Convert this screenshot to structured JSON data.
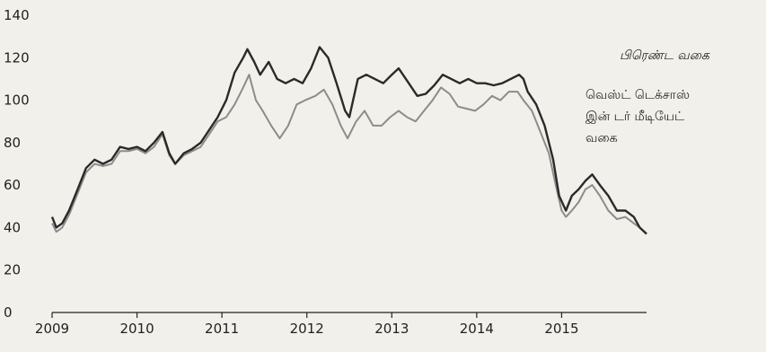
{
  "chart_data": {
    "type": "line",
    "title": "",
    "xlabel": "",
    "ylabel": "",
    "xlim": [
      2009,
      2016
    ],
    "ylim": [
      0,
      140
    ],
    "y_ticks": [
      0,
      20,
      40,
      60,
      80,
      100,
      120,
      140
    ],
    "x_ticks": [
      2009,
      2010,
      2011,
      2012,
      2013,
      2014,
      2015
    ],
    "x_tick_labels": [
      "2009",
      "2010",
      "2011",
      "2012",
      "2013",
      "2014",
      "2015"
    ],
    "grid": false,
    "legend": {
      "placement": "right",
      "entries": [
        {
          "text": "பிரெண்ட வகை",
          "series": 0
        },
        {
          "lines": [
            "வெஸ்ட் டெக்சாஸ்",
            "இன் டர் மீடியேட்",
            "வகை"
          ],
          "series": 1
        }
      ]
    },
    "series": [
      {
        "name": "பிரெண்ட வகை",
        "color": "#2a2a2a",
        "points": [
          [
            2009.0,
            45
          ],
          [
            2009.05,
            40
          ],
          [
            2009.12,
            42
          ],
          [
            2009.2,
            48
          ],
          [
            2009.3,
            58
          ],
          [
            2009.4,
            68
          ],
          [
            2009.5,
            72
          ],
          [
            2009.6,
            70
          ],
          [
            2009.7,
            72
          ],
          [
            2009.8,
            78
          ],
          [
            2009.9,
            77
          ],
          [
            2010.0,
            78
          ],
          [
            2010.1,
            76
          ],
          [
            2010.2,
            80
          ],
          [
            2010.3,
            85
          ],
          [
            2010.38,
            75
          ],
          [
            2010.45,
            70
          ],
          [
            2010.55,
            75
          ],
          [
            2010.65,
            77
          ],
          [
            2010.75,
            80
          ],
          [
            2010.85,
            86
          ],
          [
            2010.95,
            92
          ],
          [
            2011.05,
            100
          ],
          [
            2011.15,
            113
          ],
          [
            2011.25,
            120
          ],
          [
            2011.3,
            124
          ],
          [
            2011.38,
            118
          ],
          [
            2011.45,
            112
          ],
          [
            2011.55,
            118
          ],
          [
            2011.65,
            110
          ],
          [
            2011.75,
            108
          ],
          [
            2011.85,
            110
          ],
          [
            2011.95,
            108
          ],
          [
            2012.05,
            115
          ],
          [
            2012.15,
            125
          ],
          [
            2012.25,
            120
          ],
          [
            2012.35,
            108
          ],
          [
            2012.45,
            95
          ],
          [
            2012.5,
            92
          ],
          [
            2012.6,
            110
          ],
          [
            2012.7,
            112
          ],
          [
            2012.8,
            110
          ],
          [
            2012.9,
            108
          ],
          [
            2013.0,
            112
          ],
          [
            2013.08,
            115
          ],
          [
            2013.2,
            108
          ],
          [
            2013.3,
            102
          ],
          [
            2013.4,
            103
          ],
          [
            2013.5,
            107
          ],
          [
            2013.6,
            112
          ],
          [
            2013.7,
            110
          ],
          [
            2013.8,
            108
          ],
          [
            2013.9,
            110
          ],
          [
            2014.0,
            108
          ],
          [
            2014.1,
            108
          ],
          [
            2014.2,
            107
          ],
          [
            2014.3,
            108
          ],
          [
            2014.4,
            110
          ],
          [
            2014.5,
            112
          ],
          [
            2014.55,
            110
          ],
          [
            2014.6,
            104
          ],
          [
            2014.7,
            98
          ],
          [
            2014.8,
            88
          ],
          [
            2014.9,
            72
          ],
          [
            2014.97,
            55
          ],
          [
            2015.05,
            48
          ],
          [
            2015.12,
            55
          ],
          [
            2015.2,
            58
          ],
          [
            2015.28,
            62
          ],
          [
            2015.36,
            65
          ],
          [
            2015.45,
            60
          ],
          [
            2015.55,
            55
          ],
          [
            2015.65,
            48
          ],
          [
            2015.75,
            48
          ],
          [
            2015.85,
            45
          ],
          [
            2015.92,
            40
          ],
          [
            2016.0,
            37
          ]
        ]
      },
      {
        "name": "வெஸ்ட் டெக்சாஸ் இன் டர் மீடியேட் வகை",
        "color": "#8c8c8c",
        "points": [
          [
            2009.0,
            42
          ],
          [
            2009.05,
            38
          ],
          [
            2009.12,
            40
          ],
          [
            2009.2,
            46
          ],
          [
            2009.3,
            56
          ],
          [
            2009.4,
            66
          ],
          [
            2009.5,
            70
          ],
          [
            2009.6,
            69
          ],
          [
            2009.7,
            70
          ],
          [
            2009.8,
            76
          ],
          [
            2009.9,
            76
          ],
          [
            2010.0,
            77
          ],
          [
            2010.1,
            75
          ],
          [
            2010.2,
            78
          ],
          [
            2010.3,
            84
          ],
          [
            2010.38,
            74
          ],
          [
            2010.45,
            70
          ],
          [
            2010.55,
            74
          ],
          [
            2010.65,
            76
          ],
          [
            2010.75,
            78
          ],
          [
            2010.85,
            84
          ],
          [
            2010.95,
            90
          ],
          [
            2011.05,
            92
          ],
          [
            2011.15,
            98
          ],
          [
            2011.25,
            106
          ],
          [
            2011.32,
            112
          ],
          [
            2011.4,
            100
          ],
          [
            2011.48,
            95
          ],
          [
            2011.58,
            88
          ],
          [
            2011.68,
            82
          ],
          [
            2011.78,
            88
          ],
          [
            2011.88,
            98
          ],
          [
            2011.98,
            100
          ],
          [
            2012.1,
            102
          ],
          [
            2012.2,
            105
          ],
          [
            2012.3,
            98
          ],
          [
            2012.4,
            88
          ],
          [
            2012.48,
            82
          ],
          [
            2012.58,
            90
          ],
          [
            2012.68,
            95
          ],
          [
            2012.78,
            88
          ],
          [
            2012.88,
            88
          ],
          [
            2012.98,
            92
          ],
          [
            2013.08,
            95
          ],
          [
            2013.18,
            92
          ],
          [
            2013.28,
            90
          ],
          [
            2013.38,
            95
          ],
          [
            2013.48,
            100
          ],
          [
            2013.58,
            106
          ],
          [
            2013.68,
            103
          ],
          [
            2013.78,
            97
          ],
          [
            2013.88,
            96
          ],
          [
            2013.98,
            95
          ],
          [
            2014.08,
            98
          ],
          [
            2014.18,
            102
          ],
          [
            2014.28,
            100
          ],
          [
            2014.38,
            104
          ],
          [
            2014.48,
            104
          ],
          [
            2014.55,
            100
          ],
          [
            2014.65,
            95
          ],
          [
            2014.75,
            85
          ],
          [
            2014.85,
            75
          ],
          [
            2014.93,
            60
          ],
          [
            2015.0,
            48
          ],
          [
            2015.05,
            45
          ],
          [
            2015.12,
            48
          ],
          [
            2015.2,
            52
          ],
          [
            2015.28,
            58
          ],
          [
            2015.36,
            60
          ],
          [
            2015.45,
            55
          ],
          [
            2015.55,
            48
          ],
          [
            2015.65,
            44
          ],
          [
            2015.75,
            45
          ],
          [
            2015.85,
            42
          ],
          [
            2015.92,
            40
          ],
          [
            2016.0,
            37
          ]
        ]
      }
    ]
  }
}
